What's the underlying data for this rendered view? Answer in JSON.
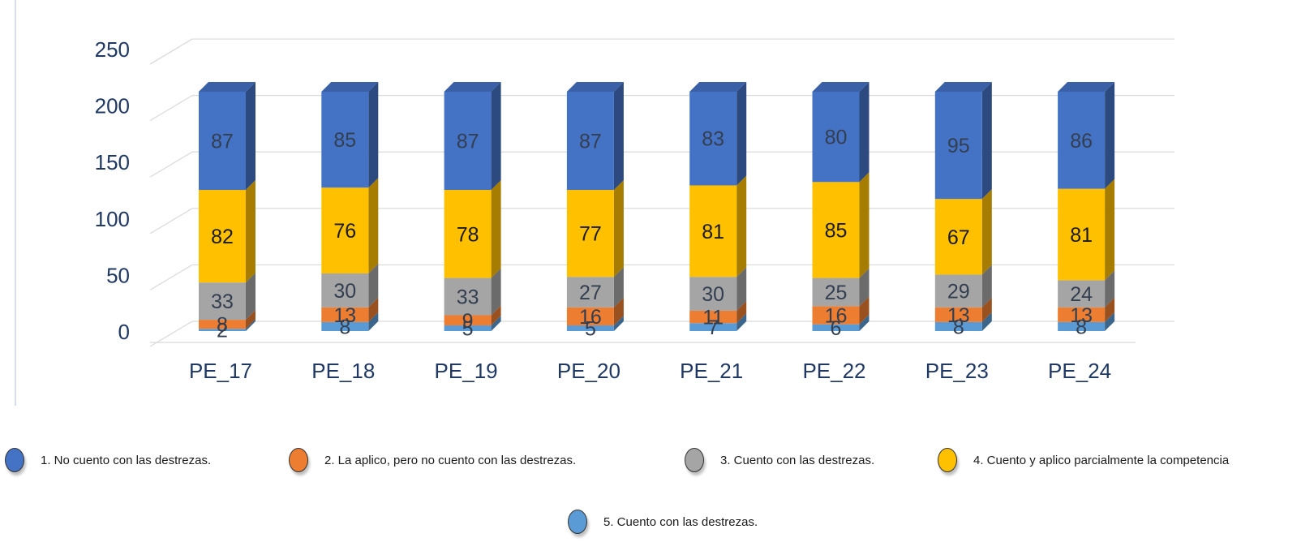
{
  "chart_data": {
    "type": "bar",
    "stacked": true,
    "style": "3d-column",
    "title": "",
    "xlabel": "",
    "ylabel": "",
    "ylim": [
      0,
      250
    ],
    "yticks": [
      0,
      50,
      100,
      150,
      200,
      250
    ],
    "grid": true,
    "legend_position": "bottom",
    "categories": [
      "PE_17",
      "PE_18",
      "PE_19",
      "PE_20",
      "PE_21",
      "PE_22",
      "PE_23",
      "PE_24"
    ],
    "series": [
      {
        "name": "5. Cuento con las destrezas.",
        "color": "#5b9bd5",
        "values": [
          2,
          8,
          5,
          5,
          7,
          6,
          8,
          8
        ]
      },
      {
        "name": "2. La aplico, pero no cuento con las destrezas.",
        "color": "#ed7d31",
        "values": [
          8,
          13,
          9,
          16,
          11,
          16,
          13,
          13
        ]
      },
      {
        "name": "3. Cuento con las destrezas.",
        "color": "#a5a5a5",
        "values": [
          33,
          30,
          33,
          27,
          30,
          25,
          29,
          24
        ]
      },
      {
        "name": "4. Cuento y aplico parcialmente la competencia",
        "color": "#ffc000",
        "values": [
          82,
          76,
          78,
          77,
          81,
          85,
          67,
          81
        ]
      },
      {
        "name": "1. No cuento con las destrezas.",
        "color": "#4472c4",
        "values": [
          87,
          85,
          87,
          87,
          83,
          80,
          95,
          86
        ]
      }
    ]
  },
  "legend": {
    "items": [
      {
        "label": "1. No cuento con las destrezas.",
        "color": "#4472c4"
      },
      {
        "label": "2. La aplico, pero no cuento con las destrezas.",
        "color": "#ed7d31"
      },
      {
        "label": "3. Cuento con las destrezas.",
        "color": "#a5a5a5"
      },
      {
        "label": "4. Cuento y aplico parcialmente la competencia",
        "color": "#ffc000"
      },
      {
        "label": "5. Cuento con las destrezas.",
        "color": "#5b9bd5"
      }
    ]
  }
}
